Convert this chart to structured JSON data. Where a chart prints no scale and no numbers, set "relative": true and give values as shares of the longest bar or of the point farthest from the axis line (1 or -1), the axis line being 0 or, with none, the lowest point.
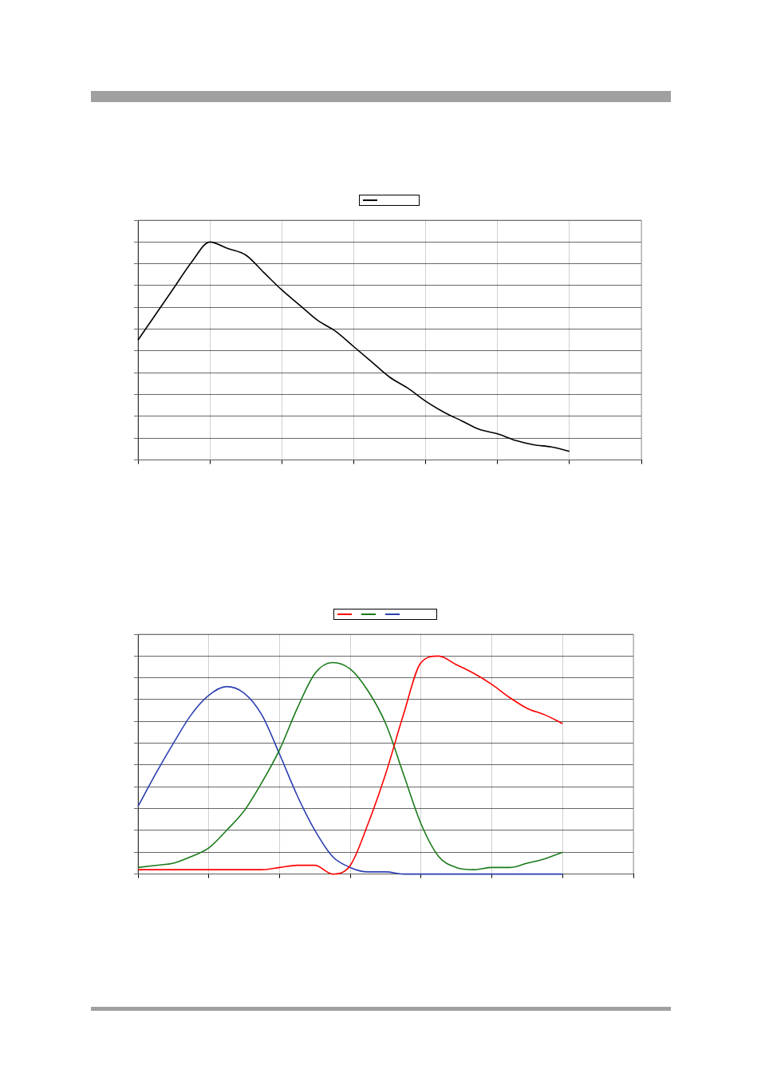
{
  "chart_data": [
    {
      "type": "line",
      "relative": true,
      "grid": true,
      "legend": false,
      "categories": [
        null,
        null,
        null,
        null,
        null,
        null,
        null,
        null,
        null,
        null,
        null,
        null,
        null,
        null,
        null,
        null,
        null,
        null,
        null,
        null,
        null,
        null,
        null,
        null,
        null,
        null,
        null,
        null,
        null
      ],
      "series": [
        {
          "color": "#000000",
          "values": [
            0.55,
            0.67,
            0.79,
            0.91,
            1.0,
            0.97,
            0.94,
            0.86,
            0.78,
            0.71,
            0.64,
            0.59,
            0.52,
            0.45,
            0.38,
            0.33,
            0.27,
            0.22,
            0.18,
            0.14,
            0.12,
            0.09,
            0.07,
            0.06,
            0.04,
            null,
            null,
            null,
            null
          ]
        }
      ]
    },
    {
      "type": "line",
      "relative": true,
      "grid": true,
      "legend": false,
      "categories": [
        null,
        null,
        null,
        null,
        null,
        null,
        null,
        null,
        null,
        null,
        null,
        null,
        null,
        null,
        null,
        null,
        null,
        null,
        null,
        null,
        null,
        null,
        null,
        null,
        null,
        null,
        null,
        null,
        null
      ],
      "series": [
        {
          "color": "#ff0000",
          "values": [
            0.02,
            0.02,
            0.02,
            0.02,
            0.02,
            0.02,
            0.02,
            0.02,
            0.03,
            0.04,
            0.04,
            0,
            0.04,
            0.23,
            0.46,
            0.73,
            0.97,
            1.0,
            0.96,
            0.92,
            0.87,
            0.81,
            0.76,
            0.73,
            0.69,
            null,
            null,
            null,
            null
          ]
        },
        {
          "color": "#1a7a1a",
          "values": [
            0.03,
            0.04,
            0.05,
            0.08,
            0.12,
            0.2,
            0.29,
            0.42,
            0.57,
            0.76,
            0.92,
            0.97,
            0.94,
            0.84,
            0.69,
            0.46,
            0.23,
            0.08,
            0.03,
            0.02,
            0.03,
            0.03,
            0.05,
            0.07,
            0.1,
            null,
            null,
            null,
            null
          ]
        },
        {
          "color": "#2b3fb0",
          "values": [
            0.31,
            0.46,
            0.6,
            0.73,
            0.82,
            0.86,
            0.83,
            0.73,
            0.55,
            0.36,
            0.2,
            0.08,
            0.03,
            0.01,
            0.01,
            0,
            0,
            0,
            0,
            0,
            0,
            0,
            0,
            0,
            0,
            null,
            null,
            null,
            null
          ]
        }
      ]
    }
  ]
}
